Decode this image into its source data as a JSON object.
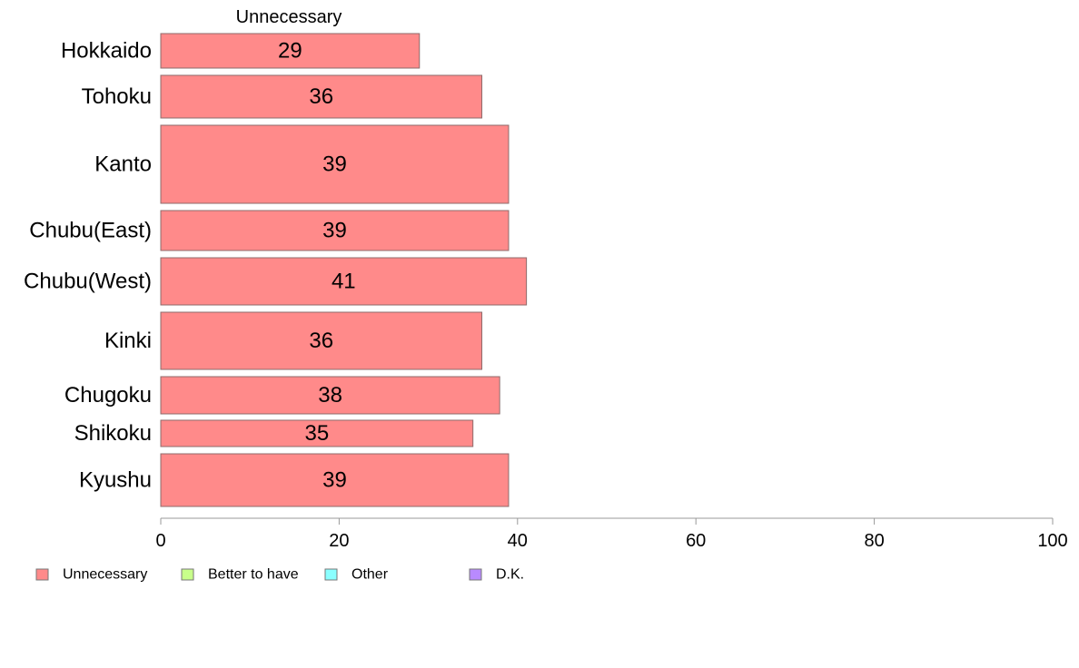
{
  "chart_data": {
    "type": "bar",
    "orientation": "horizontal",
    "stacked": true,
    "series_title": "Unnecessary",
    "categories": [
      "Hokkaido",
      "Tohoku",
      "Kanto",
      "Chubu(East)",
      "Chubu(West)",
      "Kinki",
      "Chugoku",
      "Shikoku",
      "Kyushu"
    ],
    "series": [
      {
        "name": "Unnecessary",
        "color": "#ff8a8a",
        "values": [
          29,
          36,
          39,
          39,
          41,
          36,
          38,
          35,
          39
        ]
      }
    ],
    "legend": [
      {
        "name": "Unnecessary",
        "color": "#ff8a8a"
      },
      {
        "name": "Better to have",
        "color": "#c8ff8a"
      },
      {
        "name": "Other",
        "color": "#8affff"
      },
      {
        "name": "D.K.",
        "color": "#b98aff"
      }
    ],
    "legend_position": "bottom-left",
    "xlim": [
      0,
      100
    ],
    "xticks": [
      0,
      20,
      40,
      60,
      80,
      100
    ],
    "grid": false
  }
}
